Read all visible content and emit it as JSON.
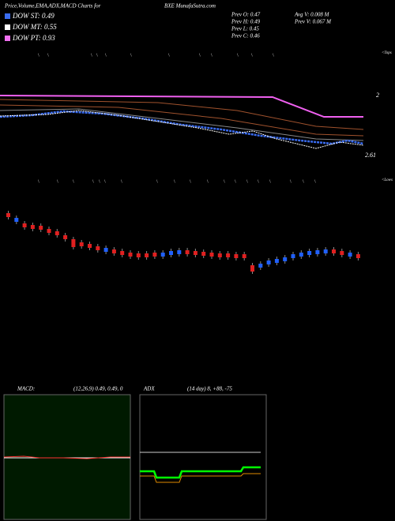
{
  "header": {
    "title": "Price,Volume,EMA,ADX,MACD Charts for",
    "ticker": "BXE MunafaSutra.com"
  },
  "legend": [
    "DOW ST: 0.49",
    "DOW MT: 0.55",
    "DOW PT: 0.93"
  ],
  "prev": [
    "Prev  O: 0.47",
    "Prev  H: 0.49",
    "Prev  L: 0.45",
    "Prev  C: 0.46"
  ],
  "volume": [
    "Avg V: 0.008 M",
    "Prev  V: 0.067 M"
  ],
  "price_chart": {
    "tops": "<Tops",
    "lows": "<Lows",
    "label_top": "2",
    "label_bottom": "2.61"
  },
  "macd": {
    "name": "MACD:",
    "params": "(12,26,9) 0.49, 0.49, 0"
  },
  "adx": {
    "name": "ADX",
    "params": "(14  day) 8, +88, -75"
  }
}
